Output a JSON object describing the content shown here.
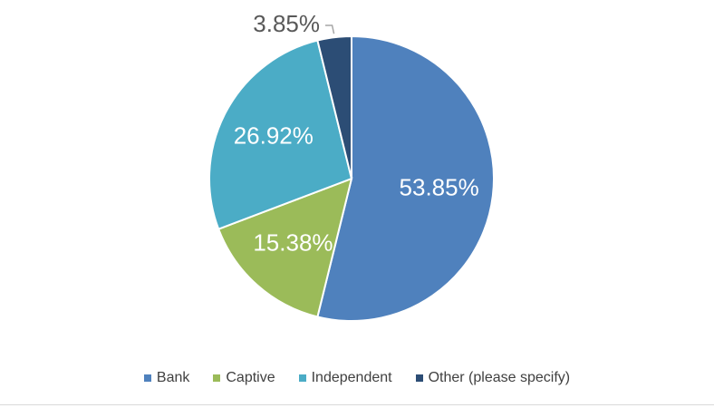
{
  "chart_data": {
    "type": "pie",
    "title": "",
    "categories": [
      "Bank",
      "Captive",
      "Independent",
      "Other (please specify)"
    ],
    "values": [
      53.85,
      15.38,
      26.92,
      3.85
    ],
    "labels": [
      "53.85%",
      "15.38%",
      "26.92%",
      "3.85%"
    ],
    "colors": [
      "#4f81bd",
      "#9bbb59",
      "#4bacc6",
      "#2c4d75"
    ],
    "legend_position": "bottom",
    "start_angle": "12 o'clock",
    "direction": "clockwise"
  }
}
